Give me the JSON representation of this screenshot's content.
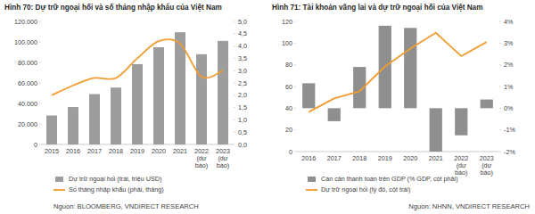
{
  "chart_data": [
    {
      "type": "bar",
      "title": "Hình 70: Dự trữ ngoại hối và số tháng nhập khẩu của Việt Nam",
      "source": "Nguồn: BLOOMBERG, VNDIRECT RESEARCH",
      "categories": [
        "2015",
        "2016",
        "2017",
        "2018",
        "2019",
        "2020",
        "2021",
        "2022 (dự báo)",
        "2023 (dự báo)"
      ],
      "series": [
        {
          "name": "Dự trữ ngoại hối (trái, triệu USD)",
          "type": "bar",
          "color": "#9d9d9d",
          "values": [
            28250,
            36500,
            49100,
            55500,
            78300,
            94800,
            109400,
            88000,
            101000
          ]
        },
        {
          "name": "Số tháng nhập khẩu (phải, tháng)",
          "type": "line",
          "axis": "y2",
          "color": "#f29b30",
          "line_style": "smooth",
          "values": [
            2.0,
            2.4,
            2.7,
            2.7,
            3.5,
            4.2,
            4.1,
            2.75,
            3.0
          ]
        }
      ],
      "ylim": [
        0,
        120000
      ],
      "yticks": [
        0,
        {
          "value": 20000,
          "label": "20.000"
        },
        {
          "value": 40000,
          "label": "40.000"
        },
        {
          "value": 60000,
          "label": "60.000"
        },
        {
          "value": 80000,
          "label": "80.000"
        },
        {
          "value": 100000,
          "label": "100.000"
        },
        {
          "value": 120000,
          "label": "120.000"
        }
      ],
      "y2lim": [
        0,
        5
      ],
      "y2ticks": [
        {
          "value": 0,
          "label": "0,0"
        },
        {
          "value": 0.5,
          "label": "0,5"
        },
        {
          "value": 1,
          "label": "1,0"
        },
        {
          "value": 1.5,
          "label": "1,5"
        },
        {
          "value": 2,
          "label": "2,0"
        },
        {
          "value": 2.5,
          "label": "2,5"
        },
        {
          "value": 3,
          "label": "3,0"
        },
        {
          "value": 3.5,
          "label": "3,5"
        },
        {
          "value": 4,
          "label": "4,0"
        },
        {
          "value": 4.5,
          "label": "4,5"
        },
        {
          "value": 5,
          "label": "5,0"
        }
      ],
      "grid": false,
      "legend": "bottom"
    },
    {
      "type": "bar",
      "title": "Hình 71: Tài khoản vãng lai và dự trữ ngoại hối của Việt Nam",
      "source": "Nguồn: NHNN, VNDIRECT RESEARCH",
      "categories": [
        "2016",
        "2017",
        "2018",
        "2019",
        "2020",
        "2021",
        "2022 (dự báo)",
        "2023 (dự báo)"
      ],
      "series": [
        {
          "name": "Cán cân thanh toán trên GDP (% GDP, cột phải)",
          "type": "bar",
          "axis": "y2",
          "color": "#8f8f8f",
          "values": [
            1.15,
            -0.6,
            1.9,
            3.8,
            3.7,
            -2.0,
            -1.25,
            0.4
          ]
        },
        {
          "name": "Dự trữ ngoại hối (tỷ đô, cột trái)",
          "type": "line",
          "color": "#f29b30",
          "line_style": "solid",
          "values": [
            36.5,
            49,
            55.5,
            78.5,
            95,
            109.5,
            88,
            101
          ]
        }
      ],
      "ylim": [
        0,
        120
      ],
      "yticks": [
        0,
        20,
        40,
        60,
        80,
        100,
        120
      ],
      "y2lim": [
        -2,
        4
      ],
      "y2ticks": [
        {
          "value": -2,
          "label": "-2%"
        },
        {
          "value": -1,
          "label": "-1%"
        },
        {
          "value": 0,
          "label": "0%"
        },
        {
          "value": 1,
          "label": "1%"
        },
        {
          "value": 2,
          "label": "2%"
        },
        {
          "value": 3,
          "label": "3%"
        },
        {
          "value": 4,
          "label": "4%"
        }
      ],
      "grid": false,
      "legend": "bottom"
    }
  ]
}
